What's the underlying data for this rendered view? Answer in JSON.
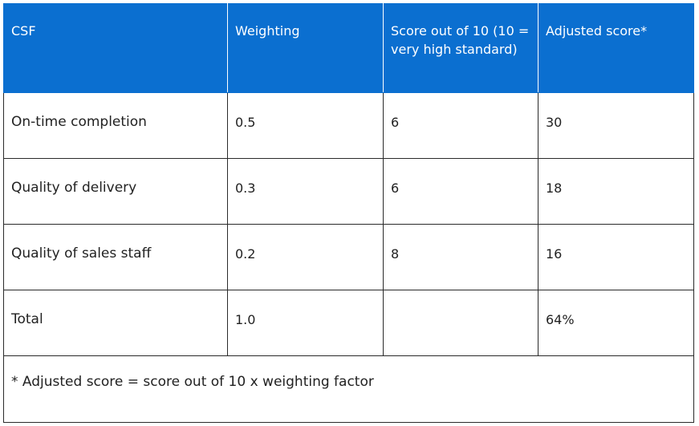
{
  "table": {
    "headers": [
      "CSF",
      "Weighting",
      "Score out of 10 (10 = very high standard)",
      "Adjusted score*"
    ],
    "rows": [
      {
        "csf": "On-time completion",
        "weighting": "0.5",
        "score": "6",
        "adjusted": "30"
      },
      {
        "csf": "Quality of delivery",
        "weighting": "0.3",
        "score": "6",
        "adjusted": "18"
      },
      {
        "csf": "Quality of sales staff",
        "weighting": "0.2",
        "score": "8",
        "adjusted": "16"
      },
      {
        "csf": "Total",
        "weighting": "1.0",
        "score": "",
        "adjusted": "64%"
      }
    ],
    "footnote": "* Adjusted score = score out of 10 x weighting factor",
    "colors": {
      "header_bg": "#0b6fd0",
      "header_text": "#ffffff",
      "border": "#2a2a2a",
      "body_text": "#222222"
    }
  }
}
